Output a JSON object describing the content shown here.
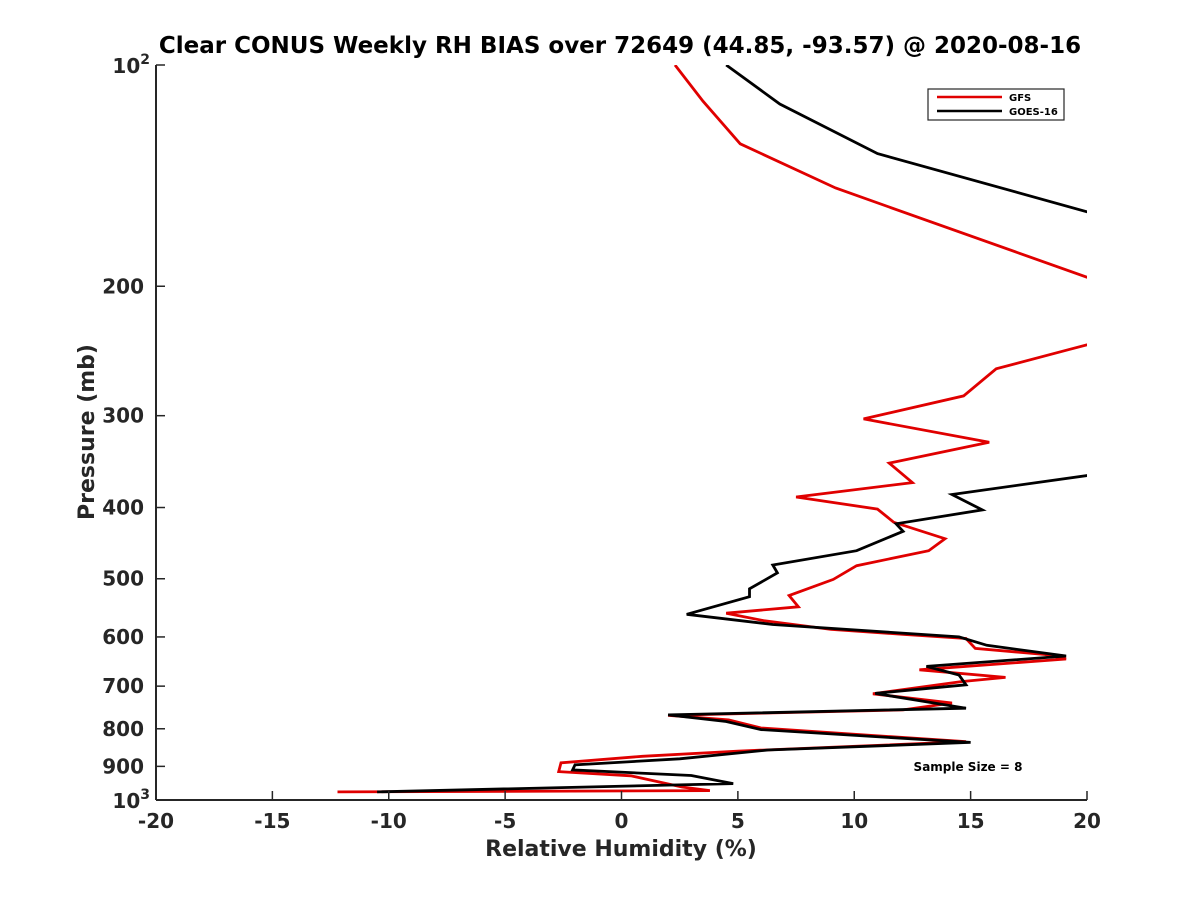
{
  "chart_data": {
    "type": "line",
    "title": "Clear CONUS Weekly RH BIAS over 72649 (44.85, -93.57) @ 2020-08-16",
    "xlabel": "Relative Humidity (%)",
    "ylabel": "Pressure (mb)",
    "xlim": [
      -20,
      20
    ],
    "ylim": [
      100,
      1000
    ],
    "y_scale": "log",
    "y_reversed": true,
    "grid": false,
    "legend_position": "top-right",
    "x_ticks": [
      "-20",
      "-15",
      "-10",
      "-5",
      "0",
      "5",
      "10",
      "15",
      "20"
    ],
    "y_ticks": [
      {
        "value": 100,
        "base": "10",
        "exp": "2"
      },
      {
        "value": 200,
        "label": "200"
      },
      {
        "value": 300,
        "label": "300"
      },
      {
        "value": 400,
        "label": "400"
      },
      {
        "value": 500,
        "label": "500"
      },
      {
        "value": 600,
        "label": "600"
      },
      {
        "value": 700,
        "label": "700"
      },
      {
        "value": 800,
        "label": "800"
      },
      {
        "value": 900,
        "label": "900"
      },
      {
        "value": 1000,
        "base": "10",
        "exp": "3"
      }
    ],
    "annotation": "Sample Size = 8",
    "series": [
      {
        "name": "GFS",
        "color": "#e00000",
        "segments": [
          [
            [
              2.3,
              100
            ],
            [
              3.5,
              112
            ],
            [
              5.1,
              128
            ],
            [
              9.2,
              147
            ],
            [
              20.5,
              197
            ]
          ],
          [
            [
              20.5,
              238
            ],
            [
              19.2,
              244
            ],
            [
              16.1,
              259
            ],
            [
              14.7,
              282
            ],
            [
              10.4,
              303
            ],
            [
              15.8,
              326
            ],
            [
              11.5,
              348
            ],
            [
              12.5,
              370
            ],
            [
              7.5,
              387
            ],
            [
              11,
              402
            ],
            [
              11.7,
              419
            ],
            [
              13.9,
              441
            ],
            [
              13.2,
              458
            ],
            [
              10.1,
              480
            ],
            [
              9.1,
              501
            ],
            [
              7.2,
              527
            ],
            [
              7.6,
              546
            ],
            [
              4.5,
              557
            ],
            [
              6.1,
              570
            ],
            [
              9,
              586
            ],
            [
              12.1,
              595
            ],
            [
              14.8,
              603
            ],
            [
              15.2,
              622
            ],
            [
              18.2,
              634
            ],
            [
              19.1,
              643
            ],
            [
              12.8,
              665
            ],
            [
              16.5,
              681
            ],
            [
              14.6,
              690
            ],
            [
              10.8,
              717
            ],
            [
              14.2,
              738
            ],
            [
              12.1,
              754
            ],
            [
              2,
              767
            ],
            [
              4.6,
              778
            ],
            [
              6,
              798
            ],
            [
              10.8,
              817
            ],
            [
              14.8,
              833
            ],
            [
              10.2,
              845
            ],
            [
              5,
              858
            ],
            [
              0.9,
              872
            ],
            [
              -2.6,
              890
            ],
            [
              -2.7,
              915
            ],
            [
              0.4,
              927
            ],
            [
              2.6,
              960
            ],
            [
              3.8,
              971
            ],
            [
              -12.2,
              975
            ]
          ]
        ]
      },
      {
        "name": "GOES-16",
        "color": "#000000",
        "segments": [
          [
            [
              4.5,
              100
            ],
            [
              6.8,
              113
            ],
            [
              11,
              132
            ],
            [
              20.5,
              160
            ]
          ],
          [
            [
              20.5,
              360
            ],
            [
              14.2,
              384
            ],
            [
              15.5,
              403
            ],
            [
              11.8,
              421
            ],
            [
              12.1,
              431
            ],
            [
              10.1,
              458
            ],
            [
              6.5,
              479
            ],
            [
              6.7,
              491
            ],
            [
              5.5,
              516
            ],
            [
              5.5,
              529
            ],
            [
              2.8,
              559
            ],
            [
              6.5,
              577
            ],
            [
              14.5,
              600
            ],
            [
              15.7,
              616
            ],
            [
              19.1,
              637
            ],
            [
              13.1,
              658
            ],
            [
              14.5,
              676
            ],
            [
              14.8,
              697
            ],
            [
              10.9,
              716
            ],
            [
              14.8,
              750
            ],
            [
              2,
              766
            ],
            [
              4.5,
              782
            ],
            [
              6,
              802
            ],
            [
              15,
              835
            ],
            [
              6.3,
              855
            ],
            [
              2.5,
              879
            ],
            [
              -2,
              896
            ],
            [
              -2.1,
              910
            ],
            [
              3,
              926
            ],
            [
              4.8,
              950
            ],
            [
              -10.5,
              975
            ]
          ]
        ]
      }
    ]
  }
}
